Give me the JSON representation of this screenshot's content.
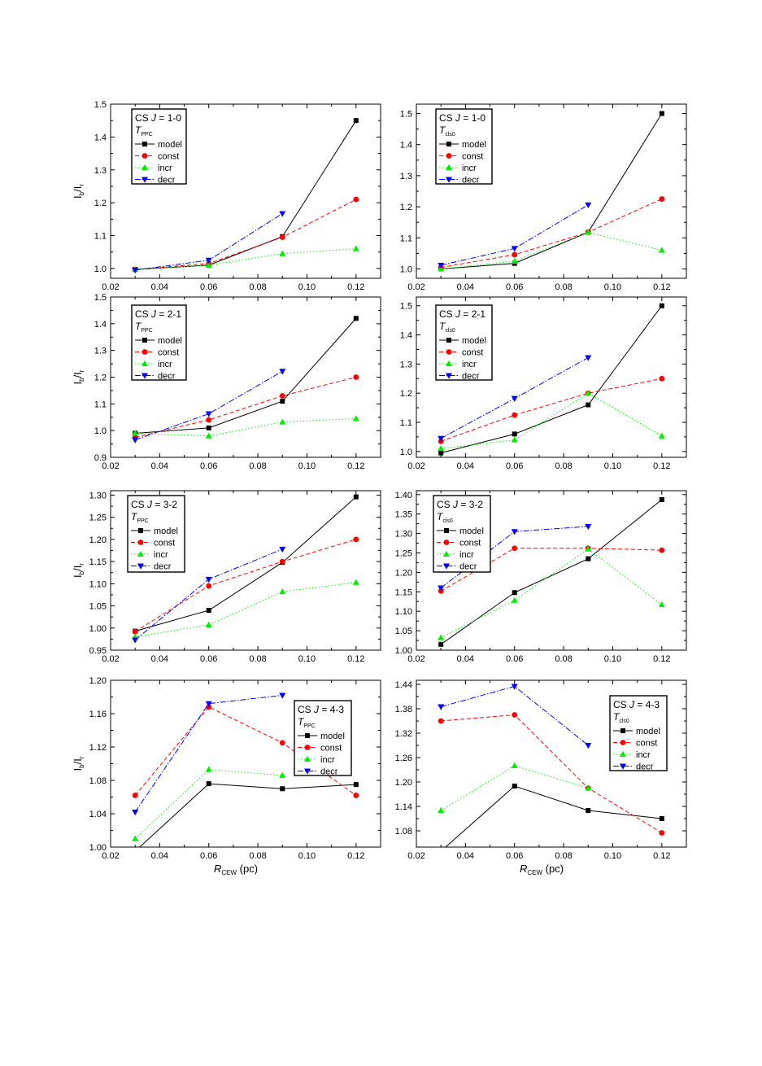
{
  "axis_titles": {
    "y_main": "I",
    "y_sub_b": "b",
    "y_slash": "/I",
    "y_sub_r": "r",
    "x_main": "R",
    "x_sub": "CEW",
    "x_unit": " (pc)"
  },
  "colors": {
    "model": "#000000",
    "const": "#ff0000",
    "incr": "#00ee00",
    "decr": "#0000ff"
  },
  "chart_data": [
    {
      "type": "line",
      "legend_placement": "top-left",
      "legend_title": "CS J = 1-0",
      "legend_title_parts": [
        "CS ",
        "J",
        " = 1-0"
      ],
      "legend_subtitle": "T",
      "legend_subtitle_sub": "PPC",
      "xlim": [
        0.02,
        0.13
      ],
      "ylim": [
        0.97,
        1.5
      ],
      "xticks": [
        "0.02",
        "0.04",
        "0.06",
        "0.08",
        "0.10",
        "0.12"
      ],
      "yticks": [
        "1.0",
        "1.1",
        "1.2",
        "1.3",
        "1.4",
        "1.5"
      ],
      "ylabel_visible": true,
      "xlabel_visible": false,
      "series": [
        {
          "name": "model",
          "x": [
            0.03,
            0.06,
            0.09,
            0.12
          ],
          "values": [
            0.997,
            1.01,
            1.097,
            1.45
          ]
        },
        {
          "name": "const",
          "x": [
            0.03,
            0.06,
            0.09,
            0.12
          ],
          "values": [
            0.997,
            1.015,
            1.095,
            1.21
          ]
        },
        {
          "name": "incr",
          "x": [
            0.03,
            0.06,
            0.09,
            0.12
          ],
          "values": [
            0.997,
            1.01,
            1.045,
            1.06
          ]
        },
        {
          "name": "decr",
          "x": [
            0.03,
            0.06,
            0.09
          ],
          "values": [
            0.995,
            1.025,
            1.167
          ]
        }
      ]
    },
    {
      "type": "line",
      "legend_placement": "top-left",
      "legend_title": "CS J = 1-0",
      "legend_title_parts": [
        "CS ",
        "J",
        " = 1-0"
      ],
      "legend_subtitle": "T",
      "legend_subtitle_sub": "cls0",
      "xlim": [
        0.02,
        0.13
      ],
      "ylim": [
        0.97,
        1.53
      ],
      "xticks": [
        "0.02",
        "0.04",
        "0.06",
        "0.08",
        "0.10",
        "0.12"
      ],
      "yticks": [
        "1.0",
        "1.1",
        "1.2",
        "1.3",
        "1.4",
        "1.5"
      ],
      "ylabel_visible": false,
      "xlabel_visible": false,
      "series": [
        {
          "name": "model",
          "x": [
            0.03,
            0.06,
            0.09,
            0.12
          ],
          "values": [
            1.0,
            1.018,
            1.118,
            1.5
          ]
        },
        {
          "name": "const",
          "x": [
            0.03,
            0.06,
            0.09,
            0.12
          ],
          "values": [
            1.005,
            1.046,
            1.118,
            1.225
          ]
        },
        {
          "name": "incr",
          "x": [
            0.03,
            0.06,
            0.09,
            0.12
          ],
          "values": [
            1.0,
            1.025,
            1.118,
            1.06
          ]
        },
        {
          "name": "decr",
          "x": [
            0.03,
            0.06,
            0.09
          ],
          "values": [
            1.012,
            1.066,
            1.206
          ]
        }
      ]
    },
    {
      "type": "line",
      "legend_placement": "top-left",
      "legend_title": "CS J = 2-1",
      "legend_title_parts": [
        "CS ",
        "J",
        " = 2-1"
      ],
      "legend_subtitle": "T",
      "legend_subtitle_sub": "PPC",
      "xlim": [
        0.02,
        0.13
      ],
      "ylim": [
        0.9,
        1.5
      ],
      "xticks": [
        "0.02",
        "0.04",
        "0.06",
        "0.08",
        "0.10",
        "0.12"
      ],
      "yticks": [
        "0.9",
        "1.0",
        "1.1",
        "1.2",
        "1.3",
        "1.4",
        "1.5"
      ],
      "ylabel_visible": true,
      "xlabel_visible": false,
      "series": [
        {
          "name": "model",
          "x": [
            0.03,
            0.06,
            0.09,
            0.12
          ],
          "values": [
            0.99,
            1.01,
            1.11,
            1.42
          ]
        },
        {
          "name": "const",
          "x": [
            0.03,
            0.06,
            0.09,
            0.12
          ],
          "values": [
            0.975,
            1.04,
            1.13,
            1.2
          ]
        },
        {
          "name": "incr",
          "x": [
            0.03,
            0.06,
            0.09,
            0.12
          ],
          "values": [
            0.99,
            0.98,
            1.032,
            1.045
          ]
        },
        {
          "name": "decr",
          "x": [
            0.03,
            0.06,
            0.09
          ],
          "values": [
            0.965,
            1.063,
            1.222
          ]
        }
      ]
    },
    {
      "type": "line",
      "legend_placement": "top-left",
      "legend_title": "CS J = 2-1",
      "legend_title_parts": [
        "CS ",
        "J",
        " = 2-1"
      ],
      "legend_subtitle": "T",
      "legend_subtitle_sub": "cls0",
      "xlim": [
        0.02,
        0.13
      ],
      "ylim": [
        0.98,
        1.53
      ],
      "xticks": [
        "0.02",
        "0.04",
        "0.06",
        "0.08",
        "0.10",
        "0.12"
      ],
      "yticks": [
        "1.0",
        "1.1",
        "1.2",
        "1.3",
        "1.4",
        "1.5"
      ],
      "ylabel_visible": false,
      "xlabel_visible": false,
      "series": [
        {
          "name": "model",
          "x": [
            0.03,
            0.06,
            0.09,
            0.12
          ],
          "values": [
            0.995,
            1.06,
            1.16,
            1.5
          ]
        },
        {
          "name": "const",
          "x": [
            0.03,
            0.06,
            0.09,
            0.12
          ],
          "values": [
            1.035,
            1.125,
            1.2,
            1.25
          ]
        },
        {
          "name": "incr",
          "x": [
            0.03,
            0.06,
            0.09,
            0.12
          ],
          "values": [
            1.01,
            1.04,
            1.2,
            1.053
          ]
        },
        {
          "name": "decr",
          "x": [
            0.03,
            0.06,
            0.09
          ],
          "values": [
            1.045,
            1.182,
            1.322
          ]
        }
      ]
    },
    {
      "type": "line",
      "legend_placement": "top-left",
      "legend_title": "CS J = 3-2",
      "legend_title_parts": [
        "CS ",
        "J",
        " = 3-2"
      ],
      "legend_subtitle": "T",
      "legend_subtitle_sub": "PPC",
      "xlim": [
        0.02,
        0.13
      ],
      "ylim": [
        0.95,
        1.31
      ],
      "xticks": [
        "0.02",
        "0.04",
        "0.06",
        "0.08",
        "0.10",
        "0.12"
      ],
      "yticks": [
        "0.95",
        "1.00",
        "1.05",
        "1.10",
        "1.15",
        "1.20",
        "1.25",
        "1.30"
      ],
      "ylabel_visible": true,
      "xlabel_visible": false,
      "series": [
        {
          "name": "model",
          "x": [
            0.03,
            0.06,
            0.09,
            0.12
          ],
          "values": [
            0.993,
            1.04,
            1.148,
            1.296
          ]
        },
        {
          "name": "const",
          "x": [
            0.03,
            0.06,
            0.09,
            0.12
          ],
          "values": [
            0.992,
            1.095,
            1.15,
            1.2
          ]
        },
        {
          "name": "incr",
          "x": [
            0.03,
            0.06,
            0.09,
            0.12
          ],
          "values": [
            0.98,
            1.007,
            1.082,
            1.103
          ]
        },
        {
          "name": "decr",
          "x": [
            0.03,
            0.06,
            0.09
          ],
          "values": [
            0.973,
            1.11,
            1.178
          ]
        }
      ]
    },
    {
      "type": "line",
      "legend_placement": "top-left",
      "legend_title": "CS J = 3-2",
      "legend_title_parts": [
        "CS ",
        "J",
        " = 3-2"
      ],
      "legend_subtitle": "T",
      "legend_subtitle_sub": "cls0",
      "xlim": [
        0.02,
        0.13
      ],
      "ylim": [
        1.0,
        1.41
      ],
      "xticks": [
        "0.02",
        "0.04",
        "0.06",
        "0.08",
        "0.10",
        "0.12"
      ],
      "yticks": [
        "1.00",
        "1.05",
        "1.10",
        "1.15",
        "1.20",
        "1.25",
        "1.30",
        "1.35",
        "1.40"
      ],
      "ylabel_visible": false,
      "xlabel_visible": false,
      "series": [
        {
          "name": "model",
          "x": [
            0.03,
            0.06,
            0.09,
            0.12
          ],
          "values": [
            1.015,
            1.148,
            1.235,
            1.387
          ]
        },
        {
          "name": "const",
          "x": [
            0.03,
            0.06,
            0.09,
            0.12
          ],
          "values": [
            1.152,
            1.262,
            1.262,
            1.257
          ]
        },
        {
          "name": "incr",
          "x": [
            0.03,
            0.06,
            0.09,
            0.12
          ],
          "values": [
            1.032,
            1.128,
            1.26,
            1.117
          ]
        },
        {
          "name": "decr",
          "x": [
            0.03,
            0.06,
            0.09
          ],
          "values": [
            1.16,
            1.305,
            1.318
          ]
        }
      ]
    },
    {
      "type": "line",
      "legend_placement": "top-right",
      "legend_title": "CS J = 4-3",
      "legend_title_parts": [
        "CS ",
        "J",
        " = 4-3"
      ],
      "legend_subtitle": "T",
      "legend_subtitle_sub": "PPC",
      "xlim": [
        0.02,
        0.13
      ],
      "ylim": [
        1.0,
        1.2
      ],
      "xticks": [
        "0.02",
        "0.04",
        "0.06",
        "0.08",
        "0.10",
        "0.12"
      ],
      "yticks": [
        "1.00",
        "1.04",
        "1.08",
        "1.12",
        "1.16",
        "1.20"
      ],
      "ylabel_visible": true,
      "xlabel_visible": true,
      "series": [
        {
          "name": "model",
          "x": [
            0.03,
            0.06,
            0.09,
            0.12
          ],
          "values": [
            0.995,
            1.076,
            1.07,
            1.075
          ]
        },
        {
          "name": "const",
          "x": [
            0.03,
            0.06,
            0.09,
            0.12
          ],
          "values": [
            1.062,
            1.168,
            1.125,
            1.062
          ]
        },
        {
          "name": "incr",
          "x": [
            0.03,
            0.06,
            0.09,
            0.12
          ],
          "values": [
            1.01,
            1.093,
            1.086,
            null
          ]
        },
        {
          "name": "decr",
          "x": [
            0.03,
            0.06,
            0.09
          ],
          "values": [
            1.042,
            1.172,
            1.182
          ]
        }
      ]
    },
    {
      "type": "line",
      "legend_placement": "top-right",
      "legend_title": "CS J = 4-3",
      "legend_title_parts": [
        "CS ",
        "J",
        " = 4-3"
      ],
      "legend_subtitle": "T",
      "legend_subtitle_sub": "cls0",
      "xlim": [
        0.02,
        0.13
      ],
      "ylim": [
        1.04,
        1.45
      ],
      "xticks": [
        "0.02",
        "0.04",
        "0.06",
        "0.08",
        "0.10",
        "0.12"
      ],
      "yticks": [
        "1.08",
        "1.14",
        "1.20",
        "1.26",
        "1.32",
        "1.38",
        "1.44"
      ],
      "ylabel_visible": false,
      "xlabel_visible": true,
      "series": [
        {
          "name": "model",
          "x": [
            0.03,
            0.06,
            0.09,
            0.12
          ],
          "values": [
            1.03,
            1.19,
            1.13,
            1.11
          ]
        },
        {
          "name": "const",
          "x": [
            0.03,
            0.06,
            0.09,
            0.12
          ],
          "values": [
            1.35,
            1.365,
            1.185,
            1.075
          ]
        },
        {
          "name": "incr",
          "x": [
            0.03,
            0.06,
            0.09
          ],
          "values": [
            1.13,
            1.24,
            1.185
          ]
        },
        {
          "name": "decr",
          "x": [
            0.03,
            0.06,
            0.09
          ],
          "values": [
            1.385,
            1.435,
            1.29
          ]
        }
      ]
    }
  ]
}
